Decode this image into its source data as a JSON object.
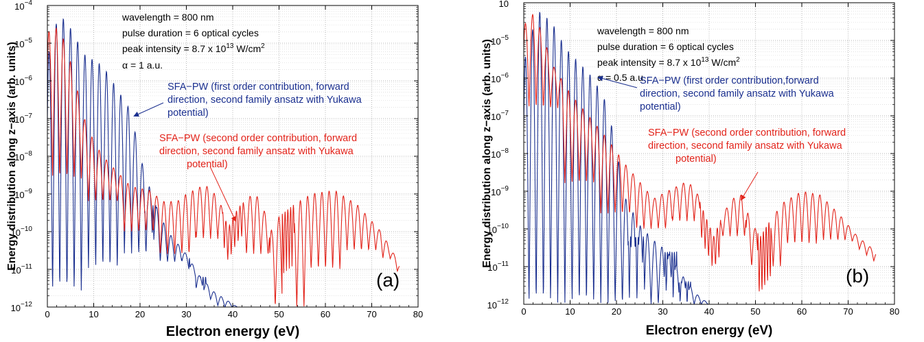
{
  "chart_data": [
    {
      "type": "line",
      "panel_label": "(a)",
      "xlabel": "Electron energy  (eV)",
      "ylabel": "Energy distribution along  z−axis (arb. units)",
      "xlim": [
        0,
        80
      ],
      "ylim": [
        1e-12,
        0.0001
      ],
      "yscale": "log",
      "grid": true,
      "x_ticks": [
        "0",
        "10",
        "20",
        "30",
        "40",
        "50",
        "60",
        "70",
        "80"
      ],
      "y_ticks": [
        {
          "base": "10",
          "exp": "−12"
        },
        {
          "base": "10",
          "exp": "−11"
        },
        {
          "base": "10",
          "exp": "−10"
        },
        {
          "base": "10",
          "exp": "−9"
        },
        {
          "base": "10",
          "exp": "−8"
        },
        {
          "base": "10",
          "exp": "−7"
        },
        {
          "base": "10",
          "exp": "−6"
        },
        {
          "base": "10",
          "exp": "−5"
        },
        {
          "base": "10",
          "exp": "−4"
        }
      ],
      "info": {
        "wavelength": "wavelength = 800 nm",
        "duration": "pulse duration = 6 optical cycles",
        "intensity_main": "peak intensity = 8.7 x 10",
        "intensity_exp": "13",
        "intensity_unit": " W/cm",
        "intensity_unit_exp": "2",
        "alpha": "α = 1 a.u."
      },
      "annotations": [
        {
          "lines": [
            "SFA−PW (first order contribution, forward",
            "direction, second family ansatz with Yukawa",
            "potential)"
          ]
        },
        {
          "lines": [
            "SFA−PW (second order contribution, forward",
            "direction, second family ansatz with Yukawa",
            "potential)"
          ]
        }
      ],
      "series": [
        {
          "color": "#1a2f8f",
          "envelope": [
            [
              0,
              -5.4
            ],
            [
              2.5,
              -4.2
            ],
            [
              5,
              -4.6
            ],
            [
              8,
              -5.3
            ],
            [
              12,
              -5.6
            ],
            [
              15,
              -6.2
            ],
            [
              18,
              -6.8
            ],
            [
              20,
              -8.0
            ],
            [
              23,
              -9.2
            ],
            [
              26,
              -10.0
            ],
            [
              30,
              -10.6
            ],
            [
              33,
              -11.2
            ],
            [
              36,
              -11.6
            ],
            [
              41,
              -12
            ]
          ],
          "troughs": [
            -11.6,
            -11.0,
            -10.6,
            -10.8,
            -11.5,
            -12,
            -12,
            -12,
            -12,
            -12
          ],
          "bursts": [
            {
              "x0": 21.0,
              "x1": 23.6,
              "period": 0.6,
              "top": -9.3
            },
            {
              "x0": 29.0,
              "x1": 30.8,
              "period": 0.55,
              "top": -10.7
            },
            {
              "x0": 32.5,
              "x1": 34.5,
              "period": 0.55,
              "top": -11.2
            }
          ]
        },
        {
          "color": "#e2231a",
          "envelope": [
            [
              0,
              -4.7
            ],
            [
              2,
              -4.6
            ],
            [
              4,
              -5.0
            ],
            [
              6,
              -6.0
            ],
            [
              8,
              -7.0
            ],
            [
              10,
              -7.6
            ],
            [
              12,
              -8.0
            ],
            [
              15,
              -8.4
            ],
            [
              18,
              -8.8
            ],
            [
              22,
              -8.9
            ],
            [
              25,
              -9.2
            ],
            [
              28,
              -9.2
            ],
            [
              30,
              -9.0
            ],
            [
              34,
              -8.75
            ],
            [
              37,
              -9.1
            ],
            [
              39,
              -9.9
            ],
            [
              41,
              -9.4
            ],
            [
              43,
              -9.1
            ],
            [
              45,
              -9.0
            ],
            [
              47,
              -9.5
            ],
            [
              48.5,
              -10.0
            ],
            [
              50,
              -9.6
            ],
            [
              53,
              -9.3
            ],
            [
              57,
              -9.0
            ],
            [
              62,
              -8.9
            ],
            [
              67,
              -9.3
            ],
            [
              72,
              -10.0
            ],
            [
              76,
              -10.85
            ]
          ],
          "troughs": [
            -8.6,
            -9.2,
            -10.0,
            -10.6,
            -10.2,
            -10.6,
            -12.0,
            -11.0,
            -10.5,
            -10.7
          ],
          "ripple": [
            {
              "x0": 37.8,
              "x1": 42.3,
              "period": 0.75,
              "depth": 0.9
            },
            {
              "x0": 50.7,
              "x1": 53.3,
              "period": 0.6,
              "depth": 1.6
            }
          ]
        }
      ]
    },
    {
      "type": "line",
      "panel_label": "(b)",
      "xlabel": "Electron energy (eV)",
      "ylabel": "Energy distribution along  z−axis (arb. units)",
      "xlim": [
        0,
        80
      ],
      "ylim": [
        1e-12,
        0.0001
      ],
      "yscale": "log",
      "grid": true,
      "x_ticks": [
        "0",
        "10",
        "20",
        "30",
        "40",
        "50",
        "60",
        "70",
        "80"
      ],
      "y_ticks": [
        {
          "base": "10",
          "exp": "−12"
        },
        {
          "base": "10",
          "exp": "−11"
        },
        {
          "base": "10",
          "exp": "−10"
        },
        {
          "base": "10",
          "exp": "−9"
        },
        {
          "base": "10",
          "exp": "−8"
        },
        {
          "base": "10",
          "exp": "−7"
        },
        {
          "base": "10",
          "exp": "−6"
        },
        {
          "base": "10",
          "exp": "−5"
        },
        {
          "base": "10",
          "exp": ""
        }
      ],
      "info": {
        "wavelength": "wavelength = 800 nm",
        "duration": "pulse duration = 6 optical cycles",
        "intensity_main": "peak intensity = 8.7 x 10",
        "intensity_exp": "13",
        "intensity_unit": " W/cm",
        "intensity_unit_exp": "2",
        "alpha": "α = 0.5 a.u."
      },
      "annotations": [
        {
          "lines": [
            "SFA−PW (first order contribution,forward",
            "direction, second family ansatz with Yukawa",
            "potential)"
          ]
        },
        {
          "lines": [
            "SFA−PW (second order contribution, forward",
            "direction, second family ansatz with Yukawa",
            "potential)"
          ]
        }
      ],
      "series": [
        {
          "color": "#1a2f8f",
          "envelope": [
            [
              0,
              -5.6
            ],
            [
              3,
              -4.2
            ],
            [
              6,
              -4.5
            ],
            [
              9,
              -5.2
            ],
            [
              12,
              -5.6
            ],
            [
              15,
              -6.0
            ],
            [
              18,
              -6.7
            ],
            [
              20,
              -7.9
            ],
            [
              22,
              -9.2
            ],
            [
              25,
              -9.9
            ],
            [
              28,
              -10.3
            ],
            [
              31,
              -10.6
            ],
            [
              34,
              -11.2
            ],
            [
              37,
              -11.7
            ],
            [
              40,
              -12
            ]
          ],
          "troughs": [
            -12,
            -12,
            -12,
            -12,
            -12,
            -12,
            -12,
            -12,
            -12,
            -12
          ],
          "bursts": [
            {
              "x0": 22.5,
              "x1": 26.0,
              "period": 0.55,
              "top": -10.2
            },
            {
              "x0": 30.0,
              "x1": 33.0,
              "period": 0.5,
              "top": -10.6
            },
            {
              "x0": 33.5,
              "x1": 36.0,
              "period": 0.5,
              "top": -11.4
            }
          ]
        },
        {
          "color": "#e2231a",
          "envelope": [
            [
              0,
              -4.6
            ],
            [
              2,
              -4.3
            ],
            [
              4,
              -4.8
            ],
            [
              6,
              -5.6
            ],
            [
              10,
              -6.4
            ],
            [
              14,
              -7.0
            ],
            [
              18,
              -7.6
            ],
            [
              22,
              -8.3
            ],
            [
              26,
              -8.9
            ],
            [
              28,
              -9.2
            ],
            [
              31,
              -9.0
            ],
            [
              35,
              -8.75
            ],
            [
              37,
              -8.9
            ],
            [
              39,
              -9.6
            ],
            [
              41,
              -10.2
            ],
            [
              43,
              -9.6
            ],
            [
              45,
              -9.2
            ],
            [
              47,
              -9.1
            ],
            [
              49,
              -9.8
            ],
            [
              51,
              -10.2
            ],
            [
              53,
              -9.8
            ],
            [
              56,
              -9.3
            ],
            [
              60,
              -9.0
            ],
            [
              64,
              -9.1
            ],
            [
              68,
              -9.6
            ],
            [
              72,
              -10.2
            ],
            [
              76,
              -10.6
            ]
          ],
          "troughs": [
            -6.8,
            -8.8,
            -9.6,
            -10.0,
            -9.8,
            -10.2,
            -11.0,
            -10.4,
            -10.3,
            -10.5
          ],
          "ripple": [
            {
              "x0": 38.0,
              "x1": 42.5,
              "period": 0.75,
              "depth": 0.9
            },
            {
              "x0": 50.5,
              "x1": 53.3,
              "period": 0.6,
              "depth": 1.6
            }
          ]
        }
      ]
    }
  ]
}
